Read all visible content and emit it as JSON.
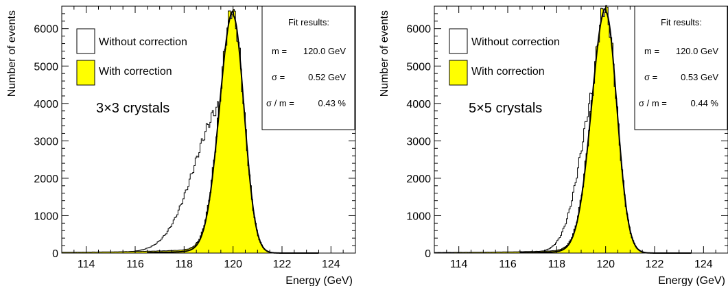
{
  "chart_data": [
    {
      "type": "histogram",
      "xlabel": "Energy (GeV)",
      "ylabel": "Number of events",
      "xlim": [
        113,
        125
      ],
      "ylim": [
        0,
        6600
      ],
      "xticks": [
        114,
        116,
        118,
        120,
        122,
        124
      ],
      "yticks": [
        0,
        1000,
        2000,
        3000,
        4000,
        5000,
        6000
      ],
      "annotation": "3×3 crystals",
      "legend": {
        "placement": "top-left",
        "entries": [
          {
            "label": "Without correction",
            "color": "#ffffff"
          },
          {
            "label": "With correction",
            "color": "#ffff00"
          }
        ]
      },
      "fit_box": {
        "title": "Fit results:",
        "m_label": "m =",
        "m_value": "120.0 GeV",
        "sigma_label": "σ =",
        "sigma_value": "0.52 GeV",
        "ratio_label": "σ / m =",
        "ratio_value": "0.43 %"
      },
      "series": [
        {
          "name": "Without correction",
          "fill": "#ffffff",
          "peak": 119.6,
          "height": 3850,
          "sigma_left": 1.15,
          "sigma_right": 0.55,
          "tail_amp": 40,
          "tail_slope": 0.9
        },
        {
          "name": "With correction",
          "fill": "#ffff00",
          "peak": 120.0,
          "height": 6350,
          "sigma_left": 0.55,
          "sigma_right": 0.45,
          "tail_amp": 60,
          "tail_slope": 0.55
        }
      ]
    },
    {
      "type": "histogram",
      "xlabel": "Energy (GeV)",
      "ylabel": "Number of events",
      "xlim": [
        113,
        125
      ],
      "ylim": [
        0,
        6600
      ],
      "xticks": [
        114,
        116,
        118,
        120,
        122,
        124
      ],
      "yticks": [
        0,
        1000,
        2000,
        3000,
        4000,
        5000,
        6000
      ],
      "annotation": "5×5 crystals",
      "legend": {
        "placement": "top-left",
        "entries": [
          {
            "label": "Without correction",
            "color": "#ffffff"
          },
          {
            "label": "With correction",
            "color": "#ffff00"
          }
        ]
      },
      "fit_box": {
        "title": "Fit results:",
        "m_label": "m =",
        "m_value": "120.0 GeV",
        "sigma_label": "σ =",
        "sigma_value": "0.53 GeV",
        "ratio_label": "σ / m =",
        "ratio_value": "0.44 %"
      },
      "series": [
        {
          "name": "Without correction",
          "fill": "#ffffff",
          "peak": 119.8,
          "height": 4750,
          "sigma_left": 0.75,
          "sigma_right": 0.5,
          "tail_amp": 25,
          "tail_slope": 0.8
        },
        {
          "name": "With correction",
          "fill": "#ffff00",
          "peak": 120.0,
          "height": 6450,
          "sigma_left": 0.57,
          "sigma_right": 0.46,
          "tail_amp": 45,
          "tail_slope": 0.55
        }
      ]
    }
  ]
}
